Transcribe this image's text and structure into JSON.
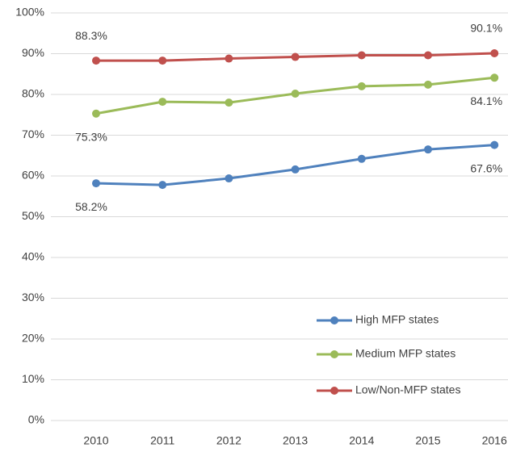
{
  "chart_data": {
    "type": "line",
    "categories": [
      "2010",
      "2011",
      "2012",
      "2013",
      "2014",
      "2015",
      "2016"
    ],
    "series": [
      {
        "name": "High MFP states",
        "color": "#4f81bd",
        "values": [
          58.2,
          57.8,
          59.4,
          61.6,
          64.2,
          66.5,
          67.6
        ],
        "value_labels": [
          "58.2%",
          null,
          null,
          null,
          null,
          null,
          "67.6%"
        ]
      },
      {
        "name": "Medium MFP states",
        "color": "#9bbb59",
        "values": [
          75.3,
          78.2,
          78.0,
          80.2,
          82.0,
          82.4,
          84.1
        ],
        "value_labels": [
          "75.3%",
          null,
          null,
          null,
          null,
          null,
          "84.1%"
        ]
      },
      {
        "name": "Low/Non-MFP states",
        "color": "#c0504d",
        "values": [
          88.3,
          88.3,
          88.8,
          89.2,
          89.6,
          89.6,
          90.1
        ],
        "value_labels": [
          "88.3%",
          null,
          null,
          null,
          null,
          null,
          "90.1%"
        ]
      }
    ],
    "ylim": [
      0,
      100
    ],
    "yticks": [
      {
        "value": 0,
        "label": "0%"
      },
      {
        "value": 10,
        "label": "10%"
      },
      {
        "value": 20,
        "label": "20%"
      },
      {
        "value": 30,
        "label": "30%"
      },
      {
        "value": 40,
        "label": "40%"
      },
      {
        "value": 50,
        "label": "50%"
      },
      {
        "value": 60,
        "label": "60%"
      },
      {
        "value": 70,
        "label": "70%"
      },
      {
        "value": 80,
        "label": "80%"
      },
      {
        "value": 90,
        "label": "90%"
      },
      {
        "value": 100,
        "label": "100%"
      }
    ],
    "grid": true,
    "legend": "lower right"
  }
}
